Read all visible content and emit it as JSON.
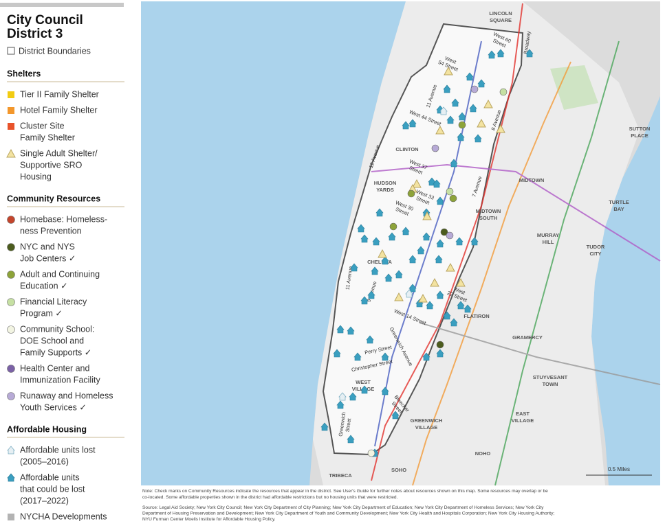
{
  "legend": {
    "title": [
      "City Council",
      "District 3"
    ],
    "boundary": "District Boundaries",
    "sections": [
      {
        "heading": "Shelters",
        "items": [
          {
            "lines": [
              "Tier II Family Shelter"
            ],
            "icon": "square",
            "color": "#f2cc12"
          },
          {
            "lines": [
              "Hotel Family Shelter"
            ],
            "icon": "square",
            "color": "#f3972c"
          },
          {
            "lines": [
              "Cluster Site",
              "Family Shelter"
            ],
            "icon": "square",
            "color": "#e8532b"
          },
          {
            "lines": [
              "Single Adult Shelter/",
              "Supportive SRO",
              "Housing"
            ],
            "icon": "triangle",
            "color": "#f3e3a1"
          }
        ]
      },
      {
        "heading": "Community Resources",
        "items": [
          {
            "lines": [
              "Homebase: Homeless-",
              "ness Prevention"
            ],
            "icon": "circle",
            "color": "#c4452c"
          },
          {
            "lines": [
              "NYC and NYS",
              "Job Centers ✓"
            ],
            "icon": "circle",
            "color": "#4c5c1e"
          },
          {
            "lines": [
              "Adult and Continuing",
              "Education ✓"
            ],
            "icon": "circle",
            "color": "#8da339"
          },
          {
            "lines": [
              "Financial Literacy",
              "Program ✓"
            ],
            "icon": "circle",
            "color": "#c6e0a3"
          },
          {
            "lines": [
              "Community School:",
              "DOE School and",
              "Family Supports ✓"
            ],
            "icon": "circle",
            "color": "#f2f4e2"
          },
          {
            "lines": [
              "Health Center and",
              "Immunization Facility"
            ],
            "icon": "circle",
            "color": "#7b61a6"
          },
          {
            "lines": [
              "Runaway and Homeless",
              "Youth Services ✓"
            ],
            "icon": "circle",
            "color": "#b7aad6"
          }
        ]
      },
      {
        "heading": "Affordable Housing",
        "items": [
          {
            "lines": [
              "Affordable units lost",
              "(2005–2016)"
            ],
            "icon": "house-outline",
            "color": "#e6eff3"
          },
          {
            "lines": [
              "Affordable units",
              "that could be lost",
              "(2017–2022)"
            ],
            "icon": "house",
            "color": "#3a9fc0"
          },
          {
            "lines": [
              "NYCHA Developments"
            ],
            "icon": "square",
            "color": "#b3b3b3"
          }
        ]
      }
    ]
  },
  "map": {
    "areas": [
      [
        "LINCOLN",
        "SQUARE"
      ],
      [
        "SUTTON",
        "PLACE"
      ],
      [
        "CLINTON"
      ],
      [
        "HUDSON",
        "YARDS"
      ],
      [
        "MIDTOWN"
      ],
      [
        "TURTLE",
        "BAY"
      ],
      [
        "MIDTOWN",
        "SOUTH"
      ],
      [
        "MURRAY",
        "HILL"
      ],
      [
        "TUDOR",
        "CITY"
      ],
      [
        "CHELSEA"
      ],
      [
        "FLATIRON"
      ],
      [
        "GRAMERCY"
      ],
      [
        "STUYVESANT",
        "TOWN"
      ],
      [
        "WEST",
        "VILLAGE"
      ],
      [
        "EAST",
        "VILLAGE"
      ],
      [
        "GREENWICH",
        "VILLAGE"
      ],
      [
        "NOHO"
      ],
      [
        "SOHO"
      ],
      [
        "TRIBECA"
      ]
    ],
    "streets": [
      [
        "West 60",
        "Street"
      ],
      [
        "Broadway"
      ],
      [
        "West",
        "54 Street"
      ],
      [
        "11 Avenue"
      ],
      [
        "West 44 Street"
      ],
      [
        "8 Avenue"
      ],
      [
        "12 Avenue"
      ],
      [
        "West 37",
        "Street"
      ],
      [
        "7 Avenue"
      ],
      [
        "West 33",
        "Street"
      ],
      [
        "West 30",
        "Street"
      ],
      [
        "11 Avenue"
      ],
      [
        "9 Avenue"
      ],
      [
        "West",
        "22 Street"
      ],
      [
        "West 14 Street"
      ],
      [
        "Greenwich Avenue"
      ],
      [
        "Perry Street"
      ],
      [
        "Christopher Street"
      ],
      [
        "Greenwich",
        "Street"
      ],
      [
        "Bleecker",
        "Street"
      ]
    ],
    "scale": "0.5 Miles"
  },
  "notes": {
    "note": [
      "Note: Check marks on Community Resources indicate the resources that appear in the district. See User's Guide for further notes about resources shown on this map. Some resources may overlap or be",
      "co-located. Some affordable properties shown in the district had affordable restrictions but no housing units that were restricted."
    ],
    "source": [
      "Source: Legal Aid Society; New York City Council; New York City Department of City Planning; New York City Department of Education; New York City Department of Homeless Services; New York City",
      "Department of Housing Preservation and Development; New York City Department of Youth and Community Development; New York City Health and Hospitals Corporation; New York City Housing Authority;",
      "NYU Furman Center Moelis Institute for Affordable Housing Policy."
    ]
  }
}
